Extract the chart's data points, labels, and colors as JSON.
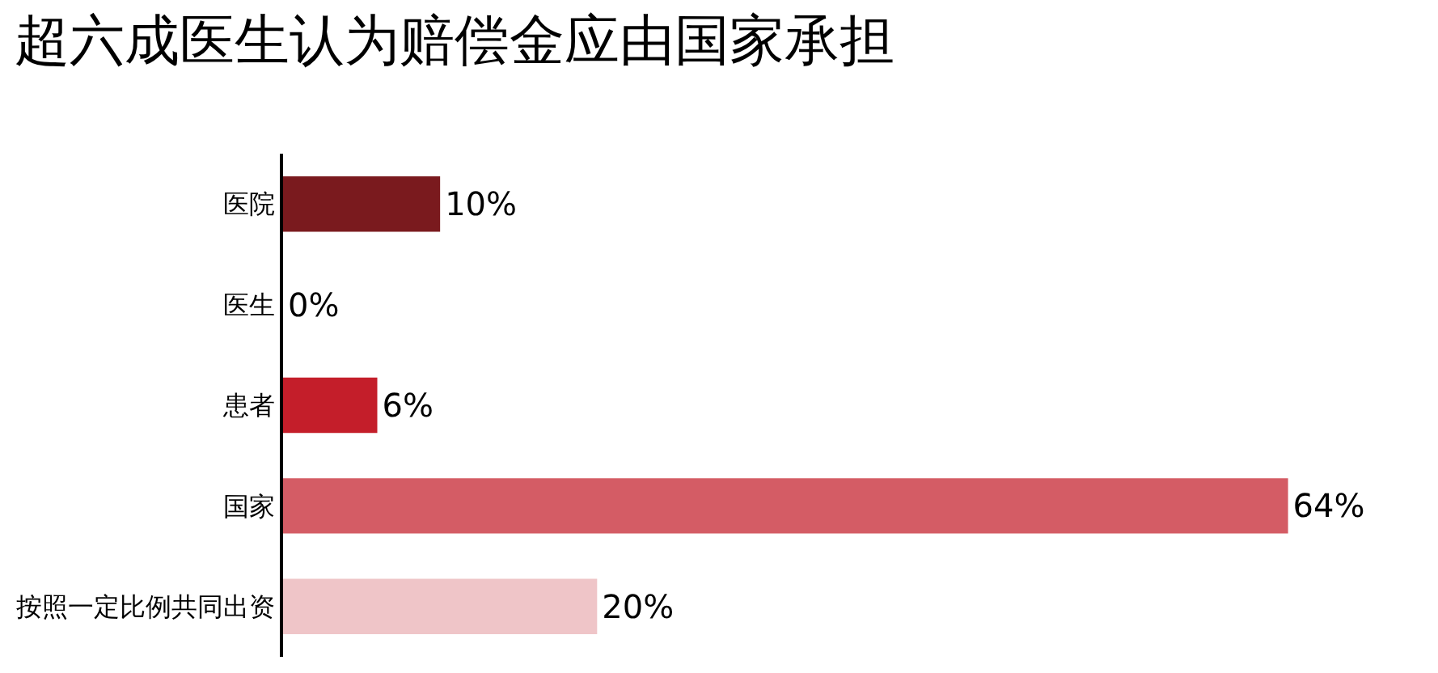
{
  "chart_data": {
    "type": "bar",
    "title": "超六成医生认为赔偿金应由国家承担",
    "orientation": "horizontal",
    "categories": [
      "医院",
      "医生",
      "患者",
      "国家",
      "按照一定比例共同出资"
    ],
    "values": [
      10,
      0,
      6,
      64,
      20
    ],
    "colors": [
      "#7a1a1e",
      "#7a1a1e",
      "#c41e2a",
      "#d45c65",
      "#efc5c8"
    ],
    "value_labels": [
      "10%",
      "0%",
      "6%",
      "64%",
      "20%"
    ],
    "tick_labels": "y"
  }
}
